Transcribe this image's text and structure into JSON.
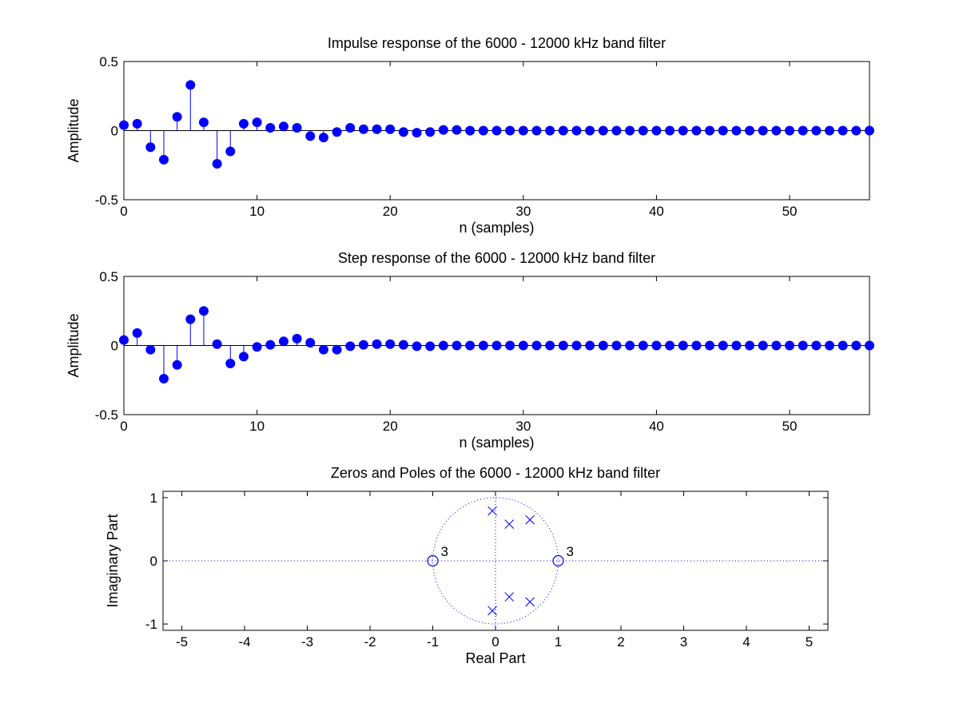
{
  "colors": {
    "marker": "#0000ff",
    "axes": "#000000",
    "background": "#ffffff"
  },
  "chart_data": [
    {
      "type": "stem",
      "title": "Impulse response of the 6000 - 12000 kHz band filter",
      "xlabel": "n (samples)",
      "ylabel": "Amplitude",
      "xlim": [
        0,
        56
      ],
      "ylim": [
        -0.5,
        0.5
      ],
      "xticks": [
        0,
        10,
        20,
        30,
        40,
        50
      ],
      "xtick_labels": [
        "0",
        "10",
        "20",
        "30",
        "40",
        "50"
      ],
      "yticks": [
        -0.5,
        0,
        0.5
      ],
      "ytick_labels": [
        "-0.5",
        "0",
        "0.5"
      ],
      "grid": false,
      "legend": "none",
      "series": [
        {
          "x": [
            0,
            1,
            2,
            3,
            4,
            5,
            6,
            7,
            8,
            9,
            10,
            11,
            12,
            13,
            14,
            15,
            16,
            17,
            18,
            19,
            20,
            21,
            22,
            23,
            24,
            25,
            26,
            27,
            28,
            29,
            30,
            31,
            32,
            33,
            34,
            35,
            36,
            37,
            38,
            39,
            40,
            41,
            42,
            43,
            44,
            45,
            46,
            47,
            48,
            49,
            50,
            51,
            52,
            53,
            54,
            55,
            56
          ],
          "values": [
            0.04,
            0.05,
            -0.12,
            -0.21,
            0.1,
            0.33,
            0.06,
            -0.24,
            -0.15,
            0.05,
            0.06,
            0.02,
            0.03,
            0.02,
            -0.04,
            -0.05,
            -0.01,
            0.02,
            0.01,
            0.01,
            0.01,
            -0.01,
            -0.015,
            -0.01,
            0.005,
            0.005,
            0,
            0,
            0,
            0,
            0,
            0,
            0,
            0,
            0,
            0,
            0,
            0,
            0,
            0,
            0,
            0,
            0,
            0,
            0,
            0,
            0,
            0,
            0,
            0,
            0,
            0,
            0,
            0,
            0,
            0,
            0
          ]
        }
      ]
    },
    {
      "type": "stem",
      "title": "Step response of the 6000 - 12000 kHz band filter",
      "xlabel": "n (samples)",
      "ylabel": "Amplitude",
      "xlim": [
        0,
        56
      ],
      "ylim": [
        -0.5,
        0.5
      ],
      "xticks": [
        0,
        10,
        20,
        30,
        40,
        50
      ],
      "xtick_labels": [
        "0",
        "10",
        "20",
        "30",
        "40",
        "50"
      ],
      "yticks": [
        -0.5,
        0,
        0.5
      ],
      "ytick_labels": [
        "-0.5",
        "0",
        "0.5"
      ],
      "grid": false,
      "legend": "none",
      "series": [
        {
          "x": [
            0,
            1,
            2,
            3,
            4,
            5,
            6,
            7,
            8,
            9,
            10,
            11,
            12,
            13,
            14,
            15,
            16,
            17,
            18,
            19,
            20,
            21,
            22,
            23,
            24,
            25,
            26,
            27,
            28,
            29,
            30,
            31,
            32,
            33,
            34,
            35,
            36,
            37,
            38,
            39,
            40,
            41,
            42,
            43,
            44,
            45,
            46,
            47,
            48,
            49,
            50,
            51,
            52,
            53,
            54,
            55,
            56
          ],
          "values": [
            0.04,
            0.09,
            -0.03,
            -0.24,
            -0.14,
            0.19,
            0.25,
            0.01,
            -0.13,
            -0.08,
            -0.01,
            0.005,
            0.03,
            0.05,
            0.02,
            -0.03,
            -0.03,
            -0.005,
            0.005,
            0.01,
            0.01,
            0.005,
            -0.005,
            -0.005,
            0,
            0,
            0,
            0,
            0,
            0,
            0,
            0,
            0,
            0,
            0,
            0,
            0,
            0,
            0,
            0,
            0,
            0,
            0,
            0,
            0,
            0,
            0,
            0,
            0,
            0,
            0,
            0,
            0,
            0,
            0,
            0,
            0
          ]
        }
      ]
    },
    {
      "type": "scatter",
      "title": "Zeros and Poles of the 6000 - 12000 kHz band filter",
      "xlabel": "Real Part",
      "ylabel": "Imaginary Part",
      "xlim": [
        -5.3,
        5.3
      ],
      "ylim": [
        -1.1,
        1.1
      ],
      "xticks": [
        -5,
        -4,
        -3,
        -2,
        -1,
        0,
        1,
        2,
        3,
        4,
        5
      ],
      "xtick_labels": [
        "-5",
        "-4",
        "-3",
        "-2",
        "-1",
        "0",
        "1",
        "2",
        "3",
        "4",
        "5"
      ],
      "yticks": [
        -1,
        0,
        1
      ],
      "ytick_labels": [
        "-1",
        "0",
        "1"
      ],
      "grid": false,
      "legend": "none",
      "unit_circle": true,
      "zeros": [
        {
          "re": -1,
          "im": 0,
          "multiplicity_label": "3"
        },
        {
          "re": 1,
          "im": 0,
          "multiplicity_label": "3"
        }
      ],
      "poles": [
        {
          "re": -0.05,
          "im": 0.79
        },
        {
          "re": 0.22,
          "im": 0.58
        },
        {
          "re": 0.55,
          "im": 0.65
        },
        {
          "re": -0.05,
          "im": -0.79
        },
        {
          "re": 0.22,
          "im": -0.57
        },
        {
          "re": 0.55,
          "im": -0.65
        }
      ]
    }
  ]
}
